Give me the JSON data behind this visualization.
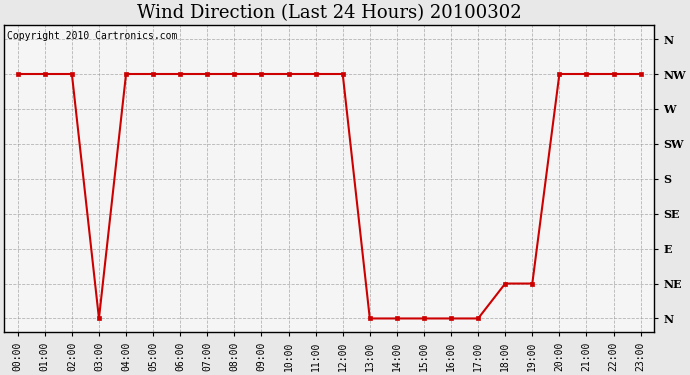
{
  "title": "Wind Direction (Last 24 Hours) 20100302",
  "copyright_text": "Copyright 2010 Cartronics.com",
  "background_color": "#e8e8e8",
  "plot_bg_color": "#f5f5f5",
  "line_color": "#cc0000",
  "marker_color": "#cc0000",
  "grid_color": "#999999",
  "y_labels_top_to_bottom": [
    "N",
    "NW",
    "W",
    "SW",
    "S",
    "SE",
    "E",
    "NE",
    "N"
  ],
  "y_values_top_to_bottom": [
    8,
    7,
    6,
    5,
    4,
    3,
    2,
    1,
    0
  ],
  "hours": [
    0,
    1,
    2,
    3,
    4,
    5,
    6,
    7,
    8,
    9,
    10,
    11,
    12,
    13,
    14,
    15,
    16,
    17,
    18,
    19,
    20,
    21,
    22,
    23
  ],
  "wind_data": {
    "0": 7,
    "1": 7,
    "2": 7,
    "3": 0,
    "4": 7,
    "5": 7,
    "6": 7,
    "7": 7,
    "8": 7,
    "9": 7,
    "10": 7,
    "11": 7,
    "12": 7,
    "13": 0,
    "14": 0,
    "15": 0,
    "16": 0,
    "17": 0,
    "18": 1,
    "19": 1,
    "20": 7,
    "21": 7,
    "22": 7,
    "23": 7
  },
  "xlim": [
    -0.5,
    23.5
  ],
  "ylim": [
    -0.4,
    8.4
  ],
  "title_fontsize": 13,
  "copyright_fontsize": 7,
  "ylabel_fontsize": 8,
  "xlabel_fontsize": 7
}
